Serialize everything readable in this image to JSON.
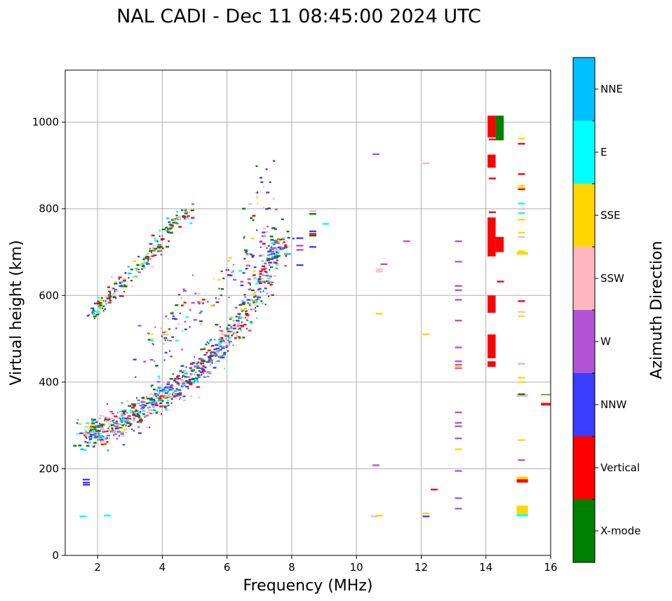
{
  "chart_data": {
    "type": "scatter",
    "title": "NAL CADI - Dec 11 08:45:00 2024 UTC",
    "xlabel": "Frequency (MHz)",
    "ylabel": "Virtual height (km)",
    "xlim": [
      1,
      16
    ],
    "ylim": [
      0,
      1120
    ],
    "xticks": [
      2,
      4,
      6,
      8,
      10,
      12,
      14,
      16
    ],
    "yticks": [
      0,
      200,
      400,
      600,
      800,
      1000
    ],
    "grid": true,
    "colorbar": {
      "title": "Azimuth Direction",
      "categories": [
        {
          "name": "X-mode",
          "color": "#008000"
        },
        {
          "name": "Vertical",
          "color": "#ff0000"
        },
        {
          "name": "NNW",
          "color": "#3c3cff"
        },
        {
          "name": "W",
          "color": "#b452d6"
        },
        {
          "name": "SSW",
          "color": "#ffb6c1"
        },
        {
          "name": "SSE",
          "color": "#ffd700"
        },
        {
          "name": "E",
          "color": "#00ffff"
        },
        {
          "name": "NNE",
          "color": "#00bfff"
        }
      ]
    },
    "bands": [
      {
        "x0": 14.05,
        "x1": 14.3,
        "y0": 965,
        "y1": 1015,
        "cat": "Vertical"
      },
      {
        "x0": 14.05,
        "x1": 14.3,
        "y0": 895,
        "y1": 925,
        "cat": "Vertical"
      },
      {
        "x0": 14.05,
        "x1": 14.3,
        "y0": 690,
        "y1": 780,
        "cat": "Vertical"
      },
      {
        "x0": 14.3,
        "x1": 14.55,
        "y0": 700,
        "y1": 735,
        "cat": "Vertical"
      },
      {
        "x0": 14.05,
        "x1": 14.3,
        "y0": 560,
        "y1": 600,
        "cat": "Vertical"
      },
      {
        "x0": 14.05,
        "x1": 14.3,
        "y0": 455,
        "y1": 510,
        "cat": "Vertical"
      },
      {
        "x0": 14.05,
        "x1": 14.3,
        "y0": 435,
        "y1": 448,
        "cat": "Vertical"
      },
      {
        "x0": 14.3,
        "x1": 14.55,
        "y0": 958,
        "y1": 1015,
        "cat": "X-mode"
      },
      {
        "x0": 14.95,
        "x1": 15.3,
        "y0": 95,
        "y1": 115,
        "cat": "SSE"
      },
      {
        "x0": 14.95,
        "x1": 15.3,
        "y0": 90,
        "y1": 95,
        "cat": "E"
      },
      {
        "x0": 14.95,
        "x1": 15.3,
        "y0": 168,
        "y1": 176,
        "cat": "Vertical"
      },
      {
        "x0": 14.95,
        "x1": 15.3,
        "y0": 176,
        "y1": 182,
        "cat": "SSE"
      },
      {
        "x0": 15.7,
        "x1": 16.0,
        "y0": 346,
        "y1": 352,
        "cat": "Vertical"
      },
      {
        "x0": 15.7,
        "x1": 16.0,
        "y0": 370,
        "y1": 372,
        "cat": "X-mode"
      },
      {
        "x0": 14.95,
        "x1": 15.3,
        "y0": 694,
        "y1": 700,
        "cat": "SSE"
      },
      {
        "x0": 14.95,
        "x1": 15.3,
        "y0": 366,
        "y1": 372,
        "cat": "SSW"
      }
    ],
    "column_marks": [
      {
        "x": 13.15,
        "cat": "W",
        "heights": [
          725,
          678,
          622,
          612,
          590,
          542,
          480,
          448,
          440,
          432,
          330,
          306,
          298,
          270,
          195,
          132,
          108
        ]
      },
      {
        "x": 13.15,
        "cat": "SSE",
        "heights": [
          435,
          245
        ]
      },
      {
        "x": 14.2,
        "cat": "Vertical",
        "heights": [
          960,
          870,
          792
        ]
      },
      {
        "x": 14.45,
        "cat": "Vertical",
        "heights": [
          632
        ]
      },
      {
        "x": 15.1,
        "cat": "SSE",
        "heights": [
          962,
          853,
          848,
          775,
          745,
          702,
          552,
          410,
          400,
          266
        ]
      },
      {
        "x": 15.1,
        "cat": "Vertical",
        "heights": [
          950,
          880,
          845,
          587,
          442
        ]
      },
      {
        "x": 15.1,
        "cat": "E",
        "heights": [
          812,
          790
        ]
      },
      {
        "x": 15.1,
        "cat": "SSW",
        "heights": [
          800,
          735,
          562,
          442
        ]
      },
      {
        "x": 15.1,
        "cat": "W",
        "heights": [
          220
        ]
      },
      {
        "x": 15.1,
        "cat": "X-mode",
        "heights": [
          372
        ]
      },
      {
        "x": 10.6,
        "cat": "W",
        "heights": [
          926,
          208
        ]
      },
      {
        "x": 10.85,
        "cat": "W",
        "heights": [
          672
        ]
      },
      {
        "x": 10.7,
        "cat": "SSW",
        "heights": [
          655,
          660
        ]
      },
      {
        "x": 10.7,
        "cat": "SSE",
        "heights": [
          558,
          92
        ]
      },
      {
        "x": 10.55,
        "cat": "SSW",
        "heights": [
          90
        ]
      },
      {
        "x": 11.55,
        "cat": "W",
        "heights": [
          725
        ]
      },
      {
        "x": 12.15,
        "cat": "SSW",
        "heights": [
          905
        ]
      },
      {
        "x": 12.15,
        "cat": "SSE",
        "heights": [
          510,
          97
        ]
      },
      {
        "x": 12.15,
        "cat": "NNW",
        "heights": [
          90
        ]
      },
      {
        "x": 12.4,
        "cat": "Vertical",
        "heights": [
          152
        ]
      },
      {
        "x": 8.65,
        "cat": "X-mode",
        "heights": [
          788,
          738
        ]
      },
      {
        "x": 8.65,
        "cat": "NNW",
        "heights": [
          748,
          712
        ]
      },
      {
        "x": 8.65,
        "cat": "Vertical",
        "heights": [
          742
        ]
      },
      {
        "x": 8.65,
        "cat": "SSW",
        "heights": [
          795
        ]
      },
      {
        "x": 9.05,
        "cat": "E",
        "heights": [
          765
        ]
      },
      {
        "x": 8.25,
        "cat": "NNW",
        "heights": [
          732,
          670
        ]
      },
      {
        "x": 8.25,
        "cat": "W",
        "heights": [
          715,
          705
        ]
      },
      {
        "x": 1.65,
        "cat": "NNW",
        "heights": [
          175,
          168,
          163
        ]
      },
      {
        "x": 1.55,
        "cat": "E",
        "heights": [
          90
        ]
      },
      {
        "x": 2.3,
        "cat": "E",
        "heights": [
          92
        ]
      }
    ],
    "dense_clusters": [
      {
        "name": "F-layer O-mode trace",
        "seed": 11,
        "count": 950,
        "path": [
          [
            1.5,
            270
          ],
          [
            2.0,
            285
          ],
          [
            2.5,
            300
          ],
          [
            3.0,
            318
          ],
          [
            3.5,
            340
          ],
          [
            4.0,
            365
          ],
          [
            4.5,
            390
          ],
          [
            5.0,
            420
          ],
          [
            5.5,
            455
          ],
          [
            6.0,
            500
          ],
          [
            6.5,
            545
          ],
          [
            7.0,
            610
          ],
          [
            7.4,
            690
          ],
          [
            7.8,
            730
          ]
        ],
        "spread_x": 0.35,
        "spread_y": 35,
        "weights": [
          0.18,
          0.14,
          0.16,
          0.14,
          0.1,
          0.08,
          0.12,
          0.08
        ]
      },
      {
        "name": "multi-hop trace",
        "seed": 23,
        "count": 230,
        "path": [
          [
            1.8,
            555
          ],
          [
            2.3,
            590
          ],
          [
            2.8,
            630
          ],
          [
            3.2,
            660
          ],
          [
            3.6,
            690
          ],
          [
            4.0,
            730
          ],
          [
            4.4,
            770
          ],
          [
            4.8,
            790
          ]
        ],
        "spread_x": 0.25,
        "spread_y": 22,
        "weights": [
          0.3,
          0.2,
          0.12,
          0.06,
          0.1,
          0.06,
          0.1,
          0.06
        ]
      },
      {
        "name": "scattered mid-range echoes",
        "seed": 37,
        "count": 160,
        "path": [
          [
            3.5,
            450
          ],
          [
            4.2,
            520
          ],
          [
            5.0,
            580
          ],
          [
            6.0,
            630
          ],
          [
            7.0,
            700
          ],
          [
            7.2,
            900
          ]
        ],
        "spread_x": 0.5,
        "spread_y": 60,
        "weights": [
          0.22,
          0.08,
          0.22,
          0.22,
          0.12,
          0.06,
          0.06,
          0.02
        ]
      }
    ]
  }
}
